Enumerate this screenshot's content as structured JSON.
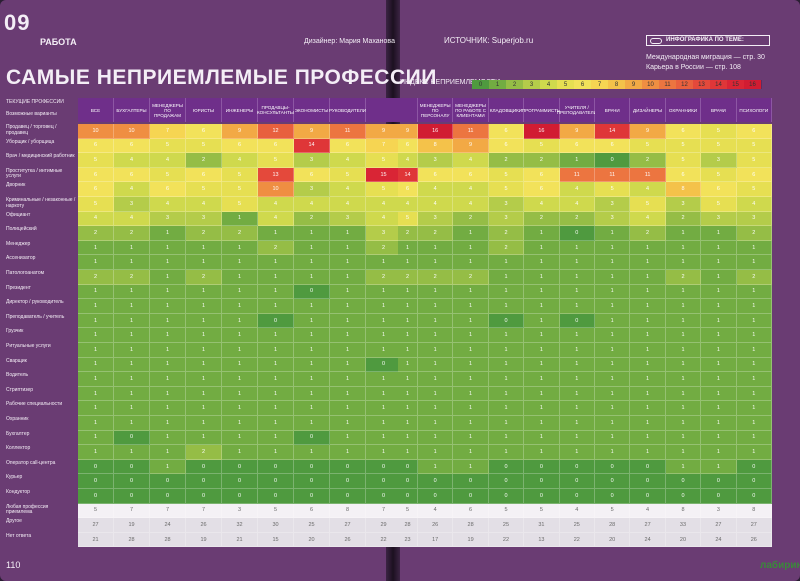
{
  "header": {
    "section_number": "09",
    "section_name": "РАБОТА",
    "designer": "Дизайнер: Мария Маханова",
    "source": "ИСТОЧНИК: Superjob.ru",
    "title": "САМЫЕ НЕПРИЕМЛЕМЫЕ ПРОФЕССИИ"
  },
  "topics": {
    "label": "ИНФОГРАФИКА ПО ТЕМЕ:",
    "items": [
      "Международная миграция — стр. 30",
      "Карьера в России — стр. 108"
    ]
  },
  "pages": {
    "left": "110",
    "watermark": "лабиринт.ру"
  },
  "chart_data": {
    "type": "heatmap",
    "scale_title": "ИНДЕКС НЕПРИЕМЛЕМОСТИ",
    "scale": [
      0,
      1,
      2,
      3,
      4,
      5,
      6,
      7,
      8,
      9,
      10,
      11,
      12,
      13,
      14,
      15,
      16
    ],
    "corner_labels": [
      "ТЕКУЩИЕ ПРОФЕССИИ",
      "Возможные варианты"
    ],
    "columns": [
      "ВСЕ",
      "БУХГАЛТЕРЫ",
      "МЕНЕДЖЕРЫ ПО ПРОДАЖАМ",
      "ЮРИСТЫ",
      "ИНЖЕНЕРЫ",
      "ПРОДАВЦЫ-КОНСУЛЬТАНТЫ",
      "ЭКОНОМИСТЫ",
      "РУКОВОДИТЕЛИ",
      "",
      "",
      "МЕНЕДЖЕРЫ ПО ПЕРСОНАЛУ",
      "МЕНЕДЖЕРЫ ПО РАБОТЕ С КЛИЕНТАМИ",
      "КЛАДОВЩИКИ",
      "ПРОГРАММИСТЫ",
      "УЧИТЕЛЯ / ПРЕПОДАВАТЕЛИ",
      "ВРАЧИ",
      "ДИЗАЙНЕРЫ",
      "ОХРАННИКИ",
      "ВРАЧИ",
      "ПСИХОЛОГИ"
    ],
    "rows": [
      "Продавец / торговец / продавец",
      "Уборщик / уборщица",
      "Врач / медицинский работник",
      "Проститутка / интимные услуги",
      "Дворник",
      "Криминальные / незаконные / наркоту",
      "Официант",
      "Полицейский",
      "Менеджер",
      "Ассенизатор",
      "Патологоанатом",
      "Президент",
      "Директор / руководитель",
      "Преподаватель / учитель",
      "Грузчик",
      "Ритуальные услуги",
      "Сварщик",
      "Водитель",
      "Стриптизер",
      "Рабочие специальности",
      "Охранник",
      "Бухгалтер",
      "Коллектор",
      "Оператор call-центра",
      "Курьер",
      "Кондуктор",
      "Любая профессия приемлема",
      "Другое",
      "Нет ответа"
    ],
    "values": [
      [
        10,
        10,
        7,
        6,
        9,
        12,
        9,
        11,
        9,
        9,
        16,
        11,
        6,
        16,
        9,
        14,
        9,
        6,
        5,
        6
      ],
      [
        6,
        6,
        5,
        5,
        6,
        6,
        14,
        6,
        7,
        6,
        8,
        9,
        6,
        5,
        6,
        6,
        5,
        5,
        5,
        5
      ],
      [
        5,
        4,
        4,
        2,
        4,
        5,
        3,
        4,
        5,
        4,
        3,
        4,
        2,
        2,
        1,
        0,
        2,
        5,
        3,
        5
      ],
      [
        6,
        6,
        5,
        6,
        5,
        13,
        6,
        5,
        15,
        14,
        6,
        6,
        5,
        6,
        11,
        11,
        11,
        6,
        5,
        6
      ],
      [
        6,
        4,
        6,
        5,
        5,
        10,
        3,
        4,
        5,
        6,
        4,
        4,
        5,
        6,
        4,
        5,
        4,
        8,
        6,
        5
      ],
      [
        5,
        3,
        4,
        4,
        5,
        4,
        4,
        4,
        4,
        4,
        4,
        4,
        3,
        4,
        4,
        3,
        5,
        3,
        5,
        4
      ],
      [
        4,
        4,
        3,
        3,
        1,
        4,
        2,
        3,
        4,
        5,
        3,
        2,
        3,
        2,
        2,
        3,
        4,
        2,
        3,
        3
      ],
      [
        2,
        2,
        1,
        2,
        2,
        1,
        1,
        1,
        3,
        2,
        2,
        1,
        2,
        1,
        0,
        1,
        2,
        1,
        1,
        2
      ],
      [
        1,
        1,
        1,
        1,
        1,
        2,
        1,
        1,
        2,
        1,
        1,
        1,
        2,
        1,
        1,
        1,
        1,
        1,
        1,
        1
      ],
      [
        1,
        1,
        1,
        1,
        1,
        1,
        1,
        1,
        1,
        1,
        1,
        1,
        1,
        1,
        1,
        1,
        1,
        1,
        1,
        1
      ],
      [
        2,
        2,
        1,
        2,
        1,
        1,
        1,
        1,
        2,
        2,
        2,
        2,
        1,
        1,
        1,
        1,
        1,
        2,
        1,
        2
      ],
      [
        1,
        1,
        1,
        1,
        1,
        1,
        0,
        1,
        1,
        1,
        1,
        1,
        1,
        1,
        1,
        1,
        1,
        1,
        1,
        1
      ],
      [
        1,
        1,
        1,
        1,
        1,
        1,
        1,
        1,
        1,
        1,
        1,
        1,
        1,
        1,
        1,
        1,
        1,
        1,
        1,
        1
      ],
      [
        1,
        1,
        1,
        1,
        1,
        0,
        1,
        1,
        1,
        1,
        1,
        1,
        0,
        1,
        0,
        1,
        1,
        1,
        1,
        1
      ],
      [
        1,
        1,
        1,
        1,
        1,
        1,
        1,
        1,
        1,
        1,
        1,
        1,
        1,
        1,
        1,
        1,
        1,
        1,
        1,
        1
      ],
      [
        1,
        1,
        1,
        1,
        1,
        1,
        1,
        1,
        1,
        1,
        1,
        1,
        1,
        1,
        1,
        1,
        1,
        1,
        1,
        1
      ],
      [
        1,
        1,
        1,
        1,
        1,
        1,
        1,
        1,
        0,
        1,
        1,
        1,
        1,
        1,
        1,
        1,
        1,
        1,
        1,
        1
      ],
      [
        1,
        1,
        1,
        1,
        1,
        1,
        1,
        1,
        1,
        1,
        1,
        1,
        1,
        1,
        1,
        1,
        1,
        1,
        1,
        1
      ],
      [
        1,
        1,
        1,
        1,
        1,
        1,
        1,
        1,
        1,
        1,
        1,
        1,
        1,
        1,
        1,
        1,
        1,
        1,
        1,
        1
      ],
      [
        1,
        1,
        1,
        1,
        1,
        1,
        1,
        1,
        1,
        1,
        1,
        1,
        1,
        1,
        1,
        1,
        1,
        1,
        1,
        1
      ],
      [
        1,
        1,
        1,
        1,
        1,
        1,
        1,
        1,
        1,
        1,
        1,
        1,
        1,
        1,
        1,
        1,
        1,
        1,
        1,
        1
      ],
      [
        1,
        0,
        1,
        1,
        1,
        1,
        0,
        1,
        1,
        1,
        1,
        1,
        1,
        1,
        1,
        1,
        1,
        1,
        1,
        1
      ],
      [
        1,
        1,
        1,
        2,
        1,
        1,
        1,
        1,
        1,
        1,
        1,
        1,
        1,
        1,
        1,
        1,
        1,
        1,
        1,
        1
      ],
      [
        0,
        0,
        1,
        0,
        0,
        0,
        0,
        0,
        0,
        0,
        1,
        1,
        0,
        0,
        0,
        0,
        0,
        1,
        1,
        0
      ],
      [
        0,
        0,
        0,
        0,
        0,
        0,
        0,
        0,
        0,
        0,
        0,
        0,
        0,
        0,
        0,
        0,
        0,
        0,
        0,
        0
      ],
      [
        0,
        0,
        0,
        0,
        0,
        0,
        0,
        0,
        0,
        0,
        0,
        0,
        0,
        0,
        0,
        0,
        0,
        0,
        0,
        0
      ],
      [
        5,
        7,
        7,
        7,
        3,
        5,
        6,
        8,
        7,
        5,
        4,
        6,
        5,
        5,
        4,
        5,
        4,
        8,
        3,
        8
      ],
      [
        27,
        19,
        24,
        26,
        32,
        30,
        25,
        27,
        29,
        28,
        26,
        28,
        25,
        31,
        25,
        28,
        27,
        33,
        27,
        27
      ],
      [
        21,
        28,
        28,
        19,
        21,
        15,
        20,
        26,
        22,
        23,
        17,
        19,
        22,
        13,
        22,
        20,
        24,
        20,
        24,
        26
      ]
    ]
  }
}
